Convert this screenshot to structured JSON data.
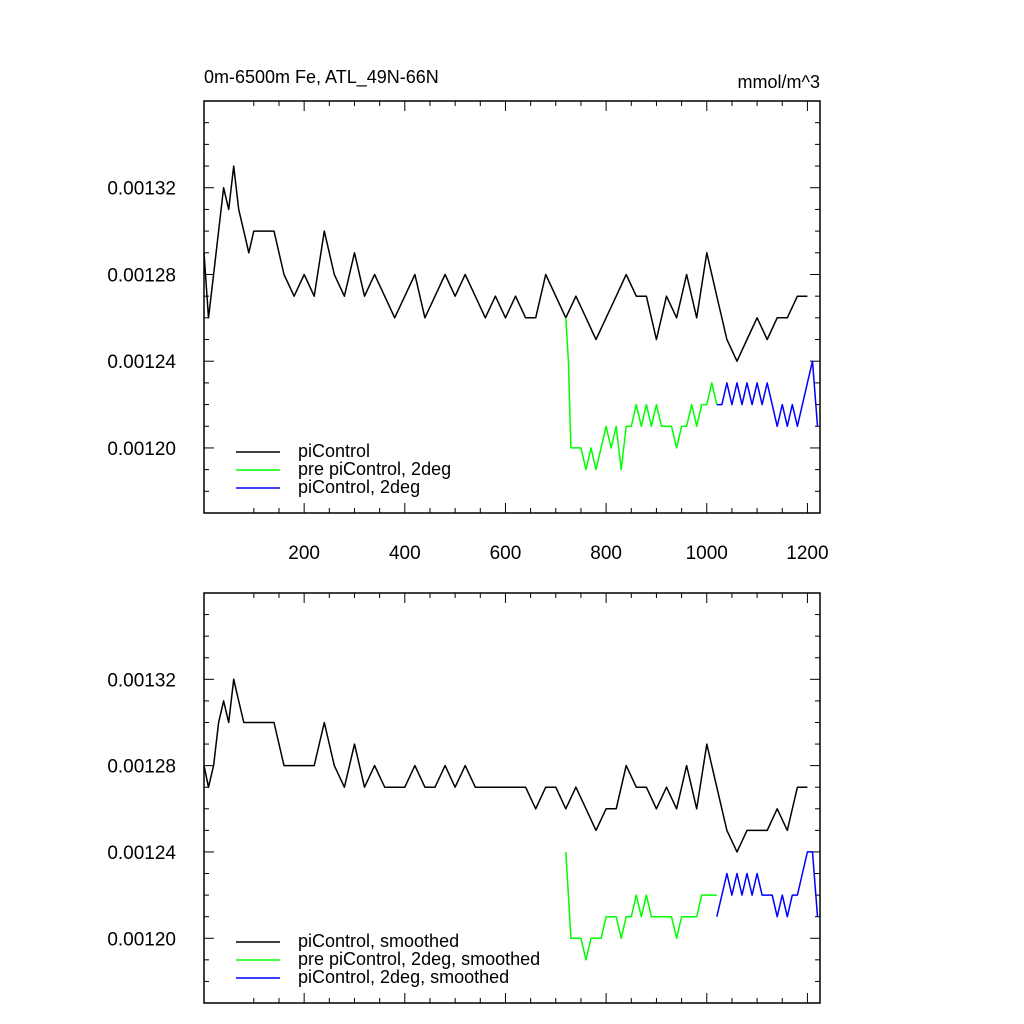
{
  "chart_data": [
    {
      "type": "line",
      "title": "0m-6500m Fe, ATL_49N-66N",
      "units": "mmol/m^3",
      "xlim": [
        1,
        1225
      ],
      "ylim": [
        0.00117,
        0.00136
      ],
      "x_ticks": [
        200,
        400,
        600,
        800,
        1000,
        1200
      ],
      "x_tick_labels": [
        "200",
        "400",
        "600",
        "800",
        "1000",
        "1200"
      ],
      "y_ticks": [
        0.0012,
        0.00124,
        0.00128,
        0.00132
      ],
      "y_tick_labels": [
        "0.00120",
        "0.00124",
        "0.00128",
        "0.00132"
      ],
      "legend": {
        "position": "bottom-left"
      },
      "series": [
        {
          "name": "piControl",
          "color": "#000000",
          "x": [
            1,
            10,
            20,
            30,
            40,
            50,
            60,
            70,
            80,
            90,
            100,
            120,
            140,
            160,
            180,
            200,
            220,
            240,
            260,
            280,
            300,
            320,
            340,
            360,
            380,
            400,
            420,
            440,
            460,
            480,
            500,
            520,
            540,
            560,
            580,
            600,
            620,
            640,
            660,
            680,
            700,
            720,
            740,
            760,
            780,
            800,
            820,
            840,
            860,
            880,
            900,
            920,
            940,
            960,
            980,
            1000,
            1020,
            1040,
            1060,
            1080,
            1100,
            1120,
            1140,
            1160,
            1180,
            1200
          ],
          "y": [
            0.00129,
            0.00126,
            0.00128,
            0.0013,
            0.00132,
            0.00131,
            0.00133,
            0.00131,
            0.0013,
            0.00129,
            0.0013,
            0.0013,
            0.0013,
            0.00128,
            0.00127,
            0.00128,
            0.00127,
            0.0013,
            0.00128,
            0.00127,
            0.00129,
            0.00127,
            0.00128,
            0.00127,
            0.00126,
            0.00127,
            0.00128,
            0.00126,
            0.00127,
            0.00128,
            0.00127,
            0.00128,
            0.00127,
            0.00126,
            0.00127,
            0.00126,
            0.00127,
            0.00126,
            0.00126,
            0.00128,
            0.00127,
            0.00126,
            0.00127,
            0.00126,
            0.00125,
            0.00126,
            0.00127,
            0.00128,
            0.00127,
            0.00127,
            0.00125,
            0.00127,
            0.00126,
            0.00128,
            0.00126,
            0.00129,
            0.00127,
            0.00125,
            0.00124,
            0.00125,
            0.00126,
            0.00125,
            0.00126,
            0.00126,
            0.00127,
            0.00127
          ]
        },
        {
          "name": "pre piControl, 2deg",
          "color": "#00ff00",
          "x": [
            720,
            725,
            730,
            740,
            750,
            760,
            770,
            780,
            790,
            800,
            810,
            820,
            830,
            840,
            850,
            860,
            870,
            880,
            890,
            900,
            910,
            920,
            930,
            940,
            950,
            960,
            970,
            980,
            990,
            1000,
            1010,
            1020
          ],
          "y": [
            0.00126,
            0.00124,
            0.0012,
            0.0012,
            0.0012,
            0.00119,
            0.0012,
            0.00119,
            0.0012,
            0.00121,
            0.0012,
            0.00121,
            0.00119,
            0.00121,
            0.00121,
            0.00122,
            0.00121,
            0.00122,
            0.00121,
            0.00122,
            0.00121,
            0.00121,
            0.00121,
            0.0012,
            0.00121,
            0.00121,
            0.00122,
            0.00121,
            0.00122,
            0.00122,
            0.00123,
            0.00122
          ]
        },
        {
          "name": "piControl, 2deg",
          "color": "#0000ff",
          "x": [
            1020,
            1030,
            1040,
            1050,
            1060,
            1070,
            1080,
            1090,
            1100,
            1110,
            1120,
            1130,
            1140,
            1150,
            1160,
            1170,
            1180,
            1190,
            1200,
            1210,
            1220
          ],
          "y": [
            0.00122,
            0.00122,
            0.00123,
            0.00122,
            0.00123,
            0.00122,
            0.00123,
            0.00122,
            0.00123,
            0.00122,
            0.00123,
            0.00122,
            0.00121,
            0.00122,
            0.00121,
            0.00122,
            0.00121,
            0.00122,
            0.00123,
            0.00124,
            0.00121
          ]
        }
      ]
    },
    {
      "type": "line",
      "xlim": [
        1,
        1225
      ],
      "ylim": [
        0.00117,
        0.00136
      ],
      "y_ticks": [
        0.0012,
        0.00124,
        0.00128,
        0.00132
      ],
      "y_tick_labels": [
        "0.00120",
        "0.00124",
        "0.00128",
        "0.00132"
      ],
      "legend": {
        "position": "bottom-left"
      },
      "series": [
        {
          "name": "piControl, smoothed",
          "color": "#000000",
          "x": [
            1,
            10,
            20,
            30,
            40,
            50,
            60,
            70,
            80,
            90,
            100,
            120,
            140,
            160,
            180,
            200,
            220,
            240,
            260,
            280,
            300,
            320,
            340,
            360,
            380,
            400,
            420,
            440,
            460,
            480,
            500,
            520,
            540,
            560,
            580,
            600,
            620,
            640,
            660,
            680,
            700,
            720,
            740,
            760,
            780,
            800,
            820,
            840,
            860,
            880,
            900,
            920,
            940,
            960,
            980,
            1000,
            1020,
            1040,
            1060,
            1080,
            1100,
            1120,
            1140,
            1160,
            1180,
            1200
          ],
          "y": [
            0.00128,
            0.00127,
            0.00128,
            0.0013,
            0.00131,
            0.0013,
            0.00132,
            0.00131,
            0.0013,
            0.0013,
            0.0013,
            0.0013,
            0.0013,
            0.00128,
            0.00128,
            0.00128,
            0.00128,
            0.0013,
            0.00128,
            0.00127,
            0.00129,
            0.00127,
            0.00128,
            0.00127,
            0.00127,
            0.00127,
            0.00128,
            0.00127,
            0.00127,
            0.00128,
            0.00127,
            0.00128,
            0.00127,
            0.00127,
            0.00127,
            0.00127,
            0.00127,
            0.00127,
            0.00126,
            0.00127,
            0.00127,
            0.00126,
            0.00127,
            0.00126,
            0.00125,
            0.00126,
            0.00126,
            0.00128,
            0.00127,
            0.00127,
            0.00126,
            0.00127,
            0.00126,
            0.00128,
            0.00126,
            0.00129,
            0.00127,
            0.00125,
            0.00124,
            0.00125,
            0.00125,
            0.00125,
            0.00126,
            0.00125,
            0.00127,
            0.00127
          ]
        },
        {
          "name": "pre piControl, 2deg, smoothed",
          "color": "#00ff00",
          "x": [
            720,
            725,
            730,
            740,
            750,
            760,
            770,
            780,
            790,
            800,
            810,
            820,
            830,
            840,
            850,
            860,
            870,
            880,
            890,
            900,
            910,
            920,
            930,
            940,
            950,
            960,
            970,
            980,
            990,
            1000,
            1010,
            1020
          ],
          "y": [
            0.00124,
            0.00122,
            0.0012,
            0.0012,
            0.0012,
            0.00119,
            0.0012,
            0.0012,
            0.0012,
            0.00121,
            0.00121,
            0.00121,
            0.0012,
            0.00121,
            0.00121,
            0.00122,
            0.00121,
            0.00122,
            0.00121,
            0.00121,
            0.00121,
            0.00121,
            0.00121,
            0.0012,
            0.00121,
            0.00121,
            0.00121,
            0.00121,
            0.00122,
            0.00122,
            0.00122,
            0.00122
          ]
        },
        {
          "name": "piControl, 2deg, smoothed",
          "color": "#0000ff",
          "x": [
            1020,
            1030,
            1040,
            1050,
            1060,
            1070,
            1080,
            1090,
            1100,
            1110,
            1120,
            1130,
            1140,
            1150,
            1160,
            1170,
            1180,
            1190,
            1200,
            1210,
            1220
          ],
          "y": [
            0.00121,
            0.00122,
            0.00123,
            0.00122,
            0.00123,
            0.00122,
            0.00123,
            0.00122,
            0.00123,
            0.00122,
            0.00122,
            0.00122,
            0.00121,
            0.00122,
            0.00121,
            0.00122,
            0.00122,
            0.00123,
            0.00124,
            0.00124,
            0.00121
          ]
        }
      ]
    }
  ]
}
